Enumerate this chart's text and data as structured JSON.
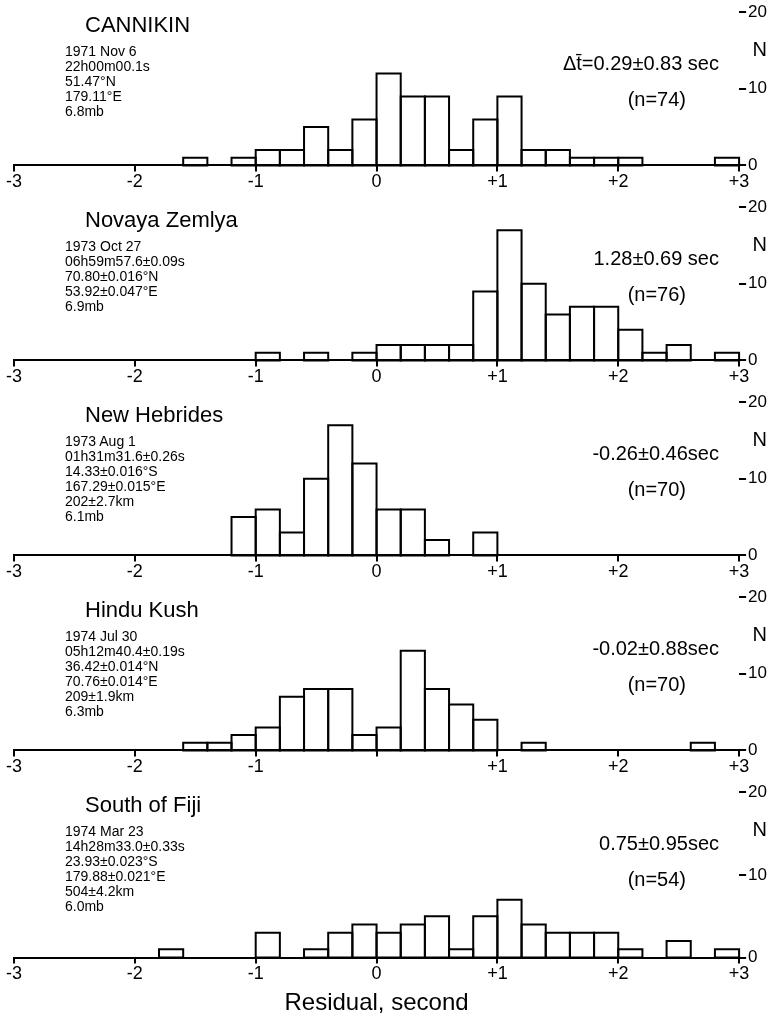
{
  "chart_data": [
    {
      "type": "histogram",
      "title": "CANNIKIN",
      "ylabel": "N",
      "annotations": [
        "1971 Nov 6",
        "22h00m00.1s",
        "51.47°N",
        "179.11°E",
        "6.8mb",
        "Δt̄=0.29±0.83 sec",
        "(n=74)"
      ],
      "color": "#000000",
      "bins": [
        -3,
        -2.8,
        -2.6,
        -2.4,
        -2.2,
        -2,
        -1.8,
        -1.6,
        -1.4,
        -1.2,
        -1,
        -0.8,
        -0.6,
        -0.4,
        -0.2,
        0,
        0.2,
        0.4,
        0.6,
        0.8,
        1,
        1.2,
        1.4,
        1.6,
        1.8,
        2,
        2.2,
        2.4,
        2.6,
        2.8,
        3
      ],
      "values": [
        0,
        0,
        0,
        0,
        0,
        0,
        0,
        1,
        0,
        1,
        2,
        2,
        5,
        2,
        6,
        12,
        9,
        9,
        2,
        6,
        9,
        2,
        2,
        1,
        1,
        1,
        0,
        0,
        0,
        1
      ],
      "xlim": [
        -3,
        3
      ],
      "xticks": [
        -3,
        -2,
        -1,
        0,
        {
          "value": 1,
          "label": "+1"
        },
        {
          "value": 2,
          "label": "+2"
        },
        {
          "value": 3,
          "label": "+3"
        }
      ],
      "ylim": [
        0,
        20
      ],
      "yticks": [
        0,
        10,
        20
      ]
    },
    {
      "type": "histogram",
      "title": "Novaya Zemlya",
      "ylabel": "N",
      "annotations": [
        "1973 Oct 27",
        "06h59m57.6±0.09s",
        "70.80±0.016°N",
        "53.92±0.047°E",
        "6.9mb",
        "1.28±0.69 sec",
        "(n=76)"
      ],
      "color": "#000000",
      "bins": [
        -3,
        -2.8,
        -2.6,
        -2.4,
        -2.2,
        -2,
        -1.8,
        -1.6,
        -1.4,
        -1.2,
        -1,
        -0.8,
        -0.6,
        -0.4,
        -0.2,
        0,
        0.2,
        0.4,
        0.6,
        0.8,
        1,
        1.2,
        1.4,
        1.6,
        1.8,
        2,
        2.2,
        2.4,
        2.6,
        2.8,
        3
      ],
      "values": [
        0,
        0,
        0,
        0,
        0,
        0,
        0,
        0,
        0,
        0,
        1,
        0,
        1,
        0,
        1,
        2,
        2,
        2,
        2,
        9,
        17,
        10,
        6,
        7,
        7,
        4,
        1,
        2,
        0,
        1
      ],
      "xlim": [
        -3,
        3
      ],
      "xticks": [
        -3,
        -2,
        -1,
        0,
        {
          "value": 1,
          "label": "+1"
        },
        {
          "value": 2,
          "label": "+2"
        },
        {
          "value": 3,
          "label": "+3"
        }
      ],
      "ylim": [
        0,
        20
      ],
      "yticks": [
        0,
        10,
        20
      ]
    },
    {
      "type": "histogram",
      "title": "New Hebrides",
      "ylabel": "N",
      "annotations": [
        "1973 Aug 1",
        "01h31m31.6±0.26s",
        "14.33±0.016°S",
        "167.29±0.015°E",
        "202±2.7km",
        "6.1mb",
        "-0.26±0.46sec",
        "(n=70)"
      ],
      "color": "#000000",
      "bins": [
        -3,
        -2.8,
        -2.6,
        -2.4,
        -2.2,
        -2,
        -1.8,
        -1.6,
        -1.4,
        -1.2,
        -1,
        -0.8,
        -0.6,
        -0.4,
        -0.2,
        0,
        0.2,
        0.4,
        0.6,
        0.8,
        1,
        1.2,
        1.4,
        1.6,
        1.8,
        2,
        2.2,
        2.4,
        2.6,
        2.8,
        3
      ],
      "values": [
        0,
        0,
        0,
        0,
        0,
        0,
        0,
        0,
        0,
        5,
        6,
        3,
        10,
        17,
        12,
        6,
        6,
        2,
        0,
        3,
        0,
        0,
        0,
        0,
        0,
        0,
        0,
        0,
        0,
        0
      ],
      "xlim": [
        -3,
        3
      ],
      "xticks": [
        -3,
        -2,
        -1,
        0,
        {
          "value": 1,
          "label": "+1"
        },
        {
          "value": 2,
          "label": "+2"
        },
        {
          "value": 3,
          "label": "+3"
        }
      ],
      "ylim": [
        0,
        20
      ],
      "yticks": [
        0,
        10,
        20
      ]
    },
    {
      "type": "histogram",
      "title": "Hindu Kush",
      "ylabel": "N",
      "annotations": [
        "1974 Jul 30",
        "05h12m40.4±0.19s",
        "36.42±0.014°N",
        "70.76±0.014°E",
        "209±1.9km",
        "6.3mb",
        "-0.02±0.88sec",
        "(n=70)"
      ],
      "color": "#000000",
      "bins": [
        -3,
        -2.8,
        -2.6,
        -2.4,
        -2.2,
        -2,
        -1.8,
        -1.6,
        -1.4,
        -1.2,
        -1,
        -0.8,
        -0.6,
        -0.4,
        -0.2,
        0,
        0.2,
        0.4,
        0.6,
        0.8,
        1,
        1.2,
        1.4,
        1.6,
        1.8,
        2,
        2.2,
        2.4,
        2.6,
        2.8,
        3
      ],
      "values": [
        0,
        0,
        0,
        0,
        0,
        0,
        0,
        1,
        1,
        2,
        3,
        7,
        8,
        8,
        2,
        3,
        13,
        8,
        6,
        4,
        0,
        1,
        0,
        0,
        0,
        0,
        0,
        0,
        1,
        0
      ],
      "xlim": [
        -3,
        3
      ],
      "xticks": [
        -3,
        -2,
        -1,
        {
          "value": 0,
          "label": null
        },
        {
          "value": 1,
          "label": "+1"
        },
        {
          "value": 2,
          "label": "+2"
        },
        {
          "value": 3,
          "label": "+3"
        }
      ],
      "ylim": [
        0,
        20
      ],
      "yticks": [
        0,
        10,
        20
      ]
    },
    {
      "type": "histogram",
      "title": "South of Fiji",
      "ylabel": "N",
      "xlabel": "Residual, second",
      "annotations": [
        "1974 Mar 23",
        "14h28m33.0±0.33s",
        "23.93±0.023°S",
        "179.88±0.021°E",
        "504±4.2km",
        "6.0mb",
        "0.75±0.95sec",
        "(n=54)"
      ],
      "color": "#000000",
      "bins": [
        -3,
        -2.8,
        -2.6,
        -2.4,
        -2.2,
        -2,
        -1.8,
        -1.6,
        -1.4,
        -1.2,
        -1,
        -0.8,
        -0.6,
        -0.4,
        -0.2,
        0,
        0.2,
        0.4,
        0.6,
        0.8,
        1,
        1.2,
        1.4,
        1.6,
        1.8,
        2,
        2.2,
        2.4,
        2.6,
        2.8,
        3
      ],
      "values": [
        0,
        0,
        0,
        0,
        0,
        0,
        1,
        0,
        0,
        0,
        3,
        0,
        1,
        3,
        4,
        3,
        4,
        5,
        1,
        5,
        7,
        4,
        3,
        3,
        3,
        1,
        0,
        2,
        0,
        1
      ],
      "xlim": [
        -3,
        3
      ],
      "xticks": [
        -3,
        -2,
        -1,
        0,
        {
          "value": 1,
          "label": "+1"
        },
        {
          "value": 2,
          "label": "+2"
        },
        {
          "value": 3,
          "label": "+3"
        }
      ],
      "ylim": [
        0,
        20
      ],
      "yticks": [
        0,
        10,
        20
      ]
    }
  ]
}
